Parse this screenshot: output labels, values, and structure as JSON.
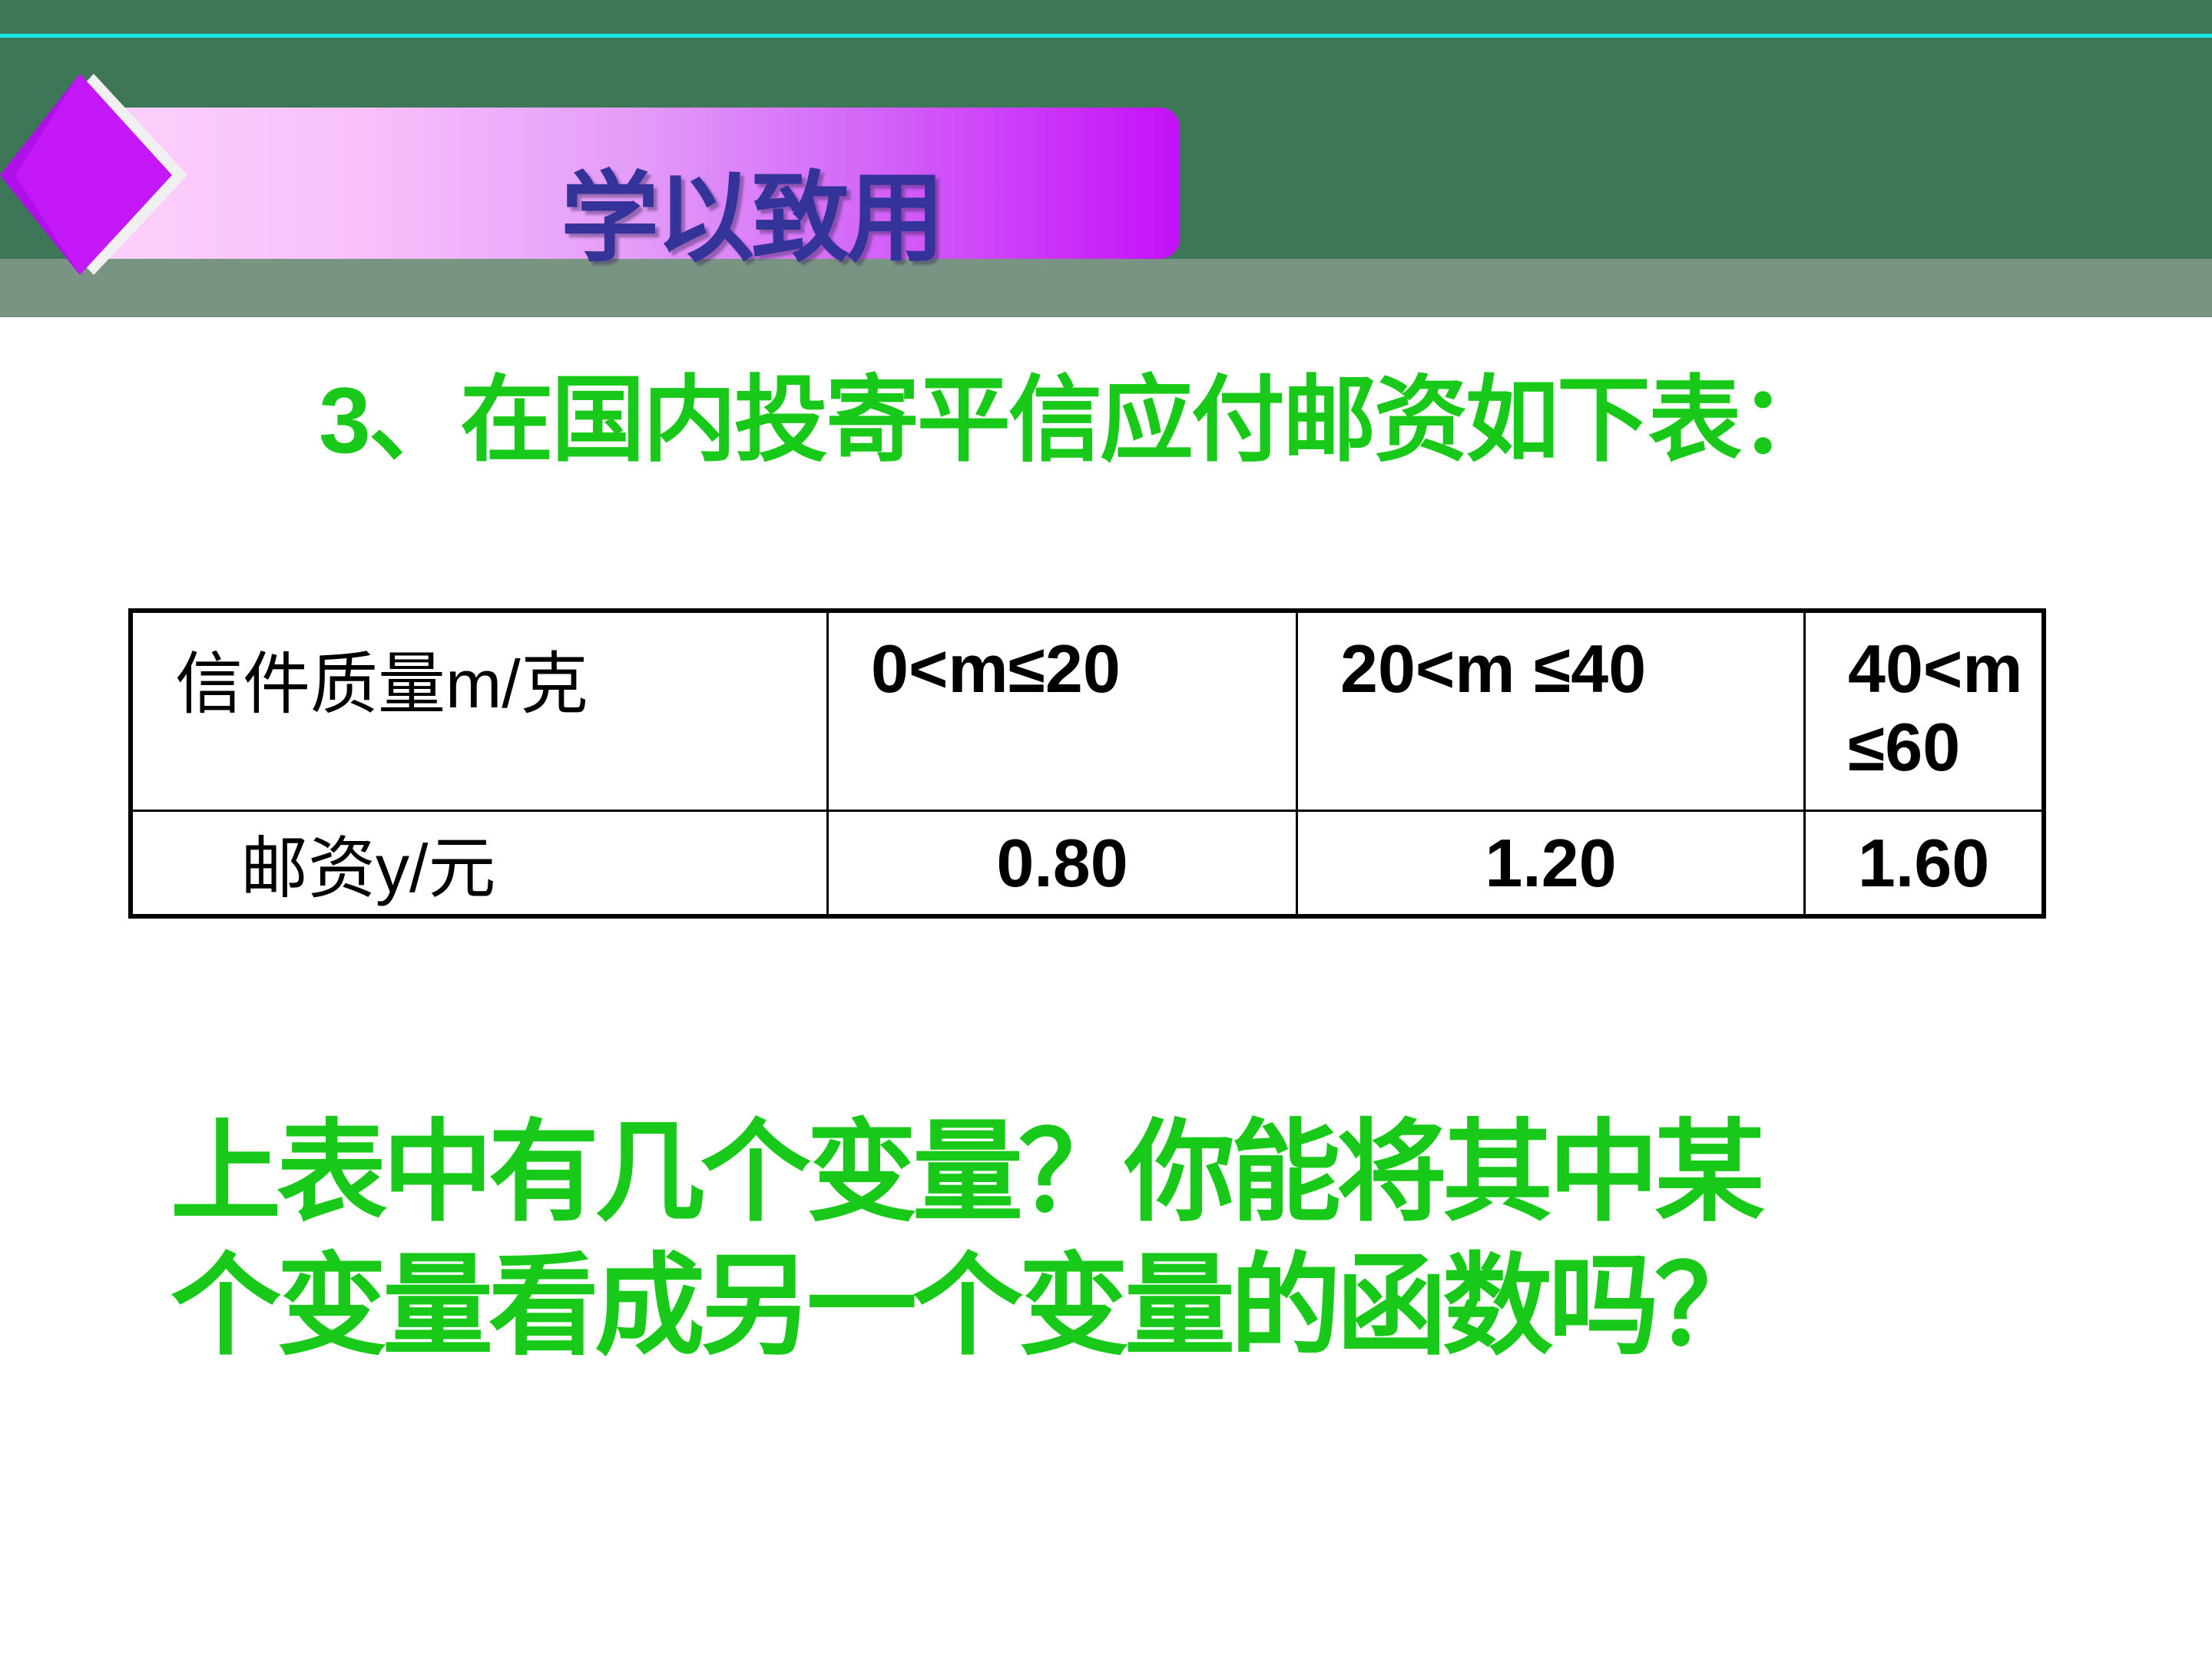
{
  "colors": {
    "header_green": "#3d7757",
    "accent_cyan": "#19e6e6",
    "band_gray": "#7a9484",
    "banner_purple": "#c410f8",
    "title_navy": "#333399",
    "text_green": "#19c919"
  },
  "banner": {
    "title": "学以致用",
    "icon": "diamond-arrow-icon"
  },
  "heading": "3、在国内投寄平信应付邮资如下表：",
  "table": {
    "header": [
      "信件质量m/克",
      "0<m≤20",
      "20<m ≤40",
      "40<m ≤60"
    ],
    "row": [
      "邮资y/元",
      "0.80",
      "1.20",
      "1.60"
    ]
  },
  "question": {
    "line1": "上表中有几个变量？你能将其中某",
    "line2": "个变量看成另一个变量的函数吗？"
  }
}
